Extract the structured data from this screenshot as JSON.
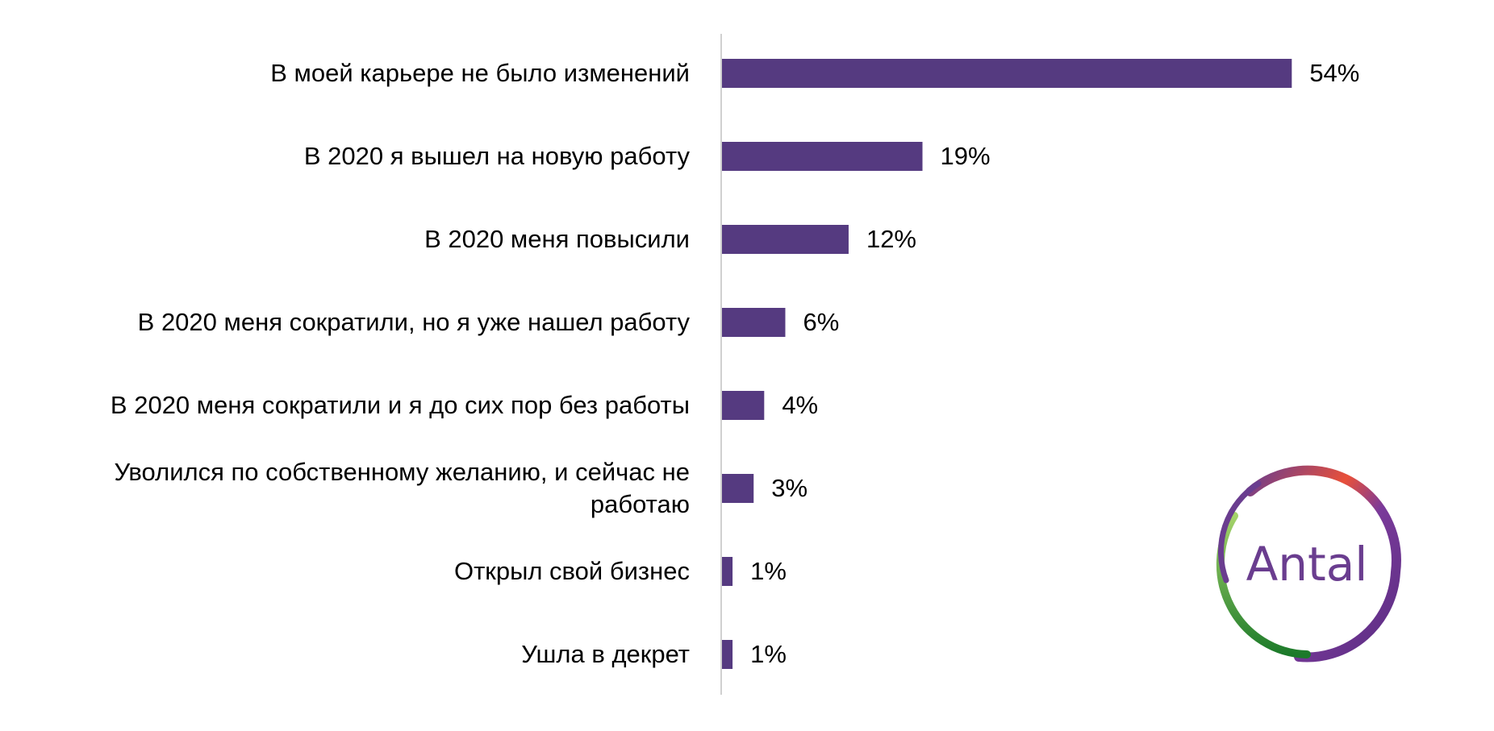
{
  "chart_data": {
    "type": "bar",
    "orientation": "horizontal",
    "categories": [
      "В моей карьере не было изменений",
      "В 2020 я вышел на новую работу",
      "В 2020 меня повысили",
      "В 2020 меня сократили, но я уже нашел работу",
      "В 2020 меня сократили и я до сих пор без работы",
      "Уволился по собственному желанию, и сейчас не работаю",
      "Открыл свой бизнес",
      "Ушла в декрет"
    ],
    "values": [
      54,
      19,
      12,
      6,
      4,
      3,
      1,
      1
    ],
    "data_labels": [
      "54%",
      "19%",
      "12%",
      "6%",
      "4%",
      "3%",
      "1%",
      "1%"
    ],
    "unit": "%",
    "xlim": [
      0,
      54
    ],
    "grid": false,
    "bar_color": "#553a80",
    "axis_color": "#d0d0d0"
  },
  "logo": {
    "text": "Antal",
    "text_color": "#6a3d8f"
  }
}
